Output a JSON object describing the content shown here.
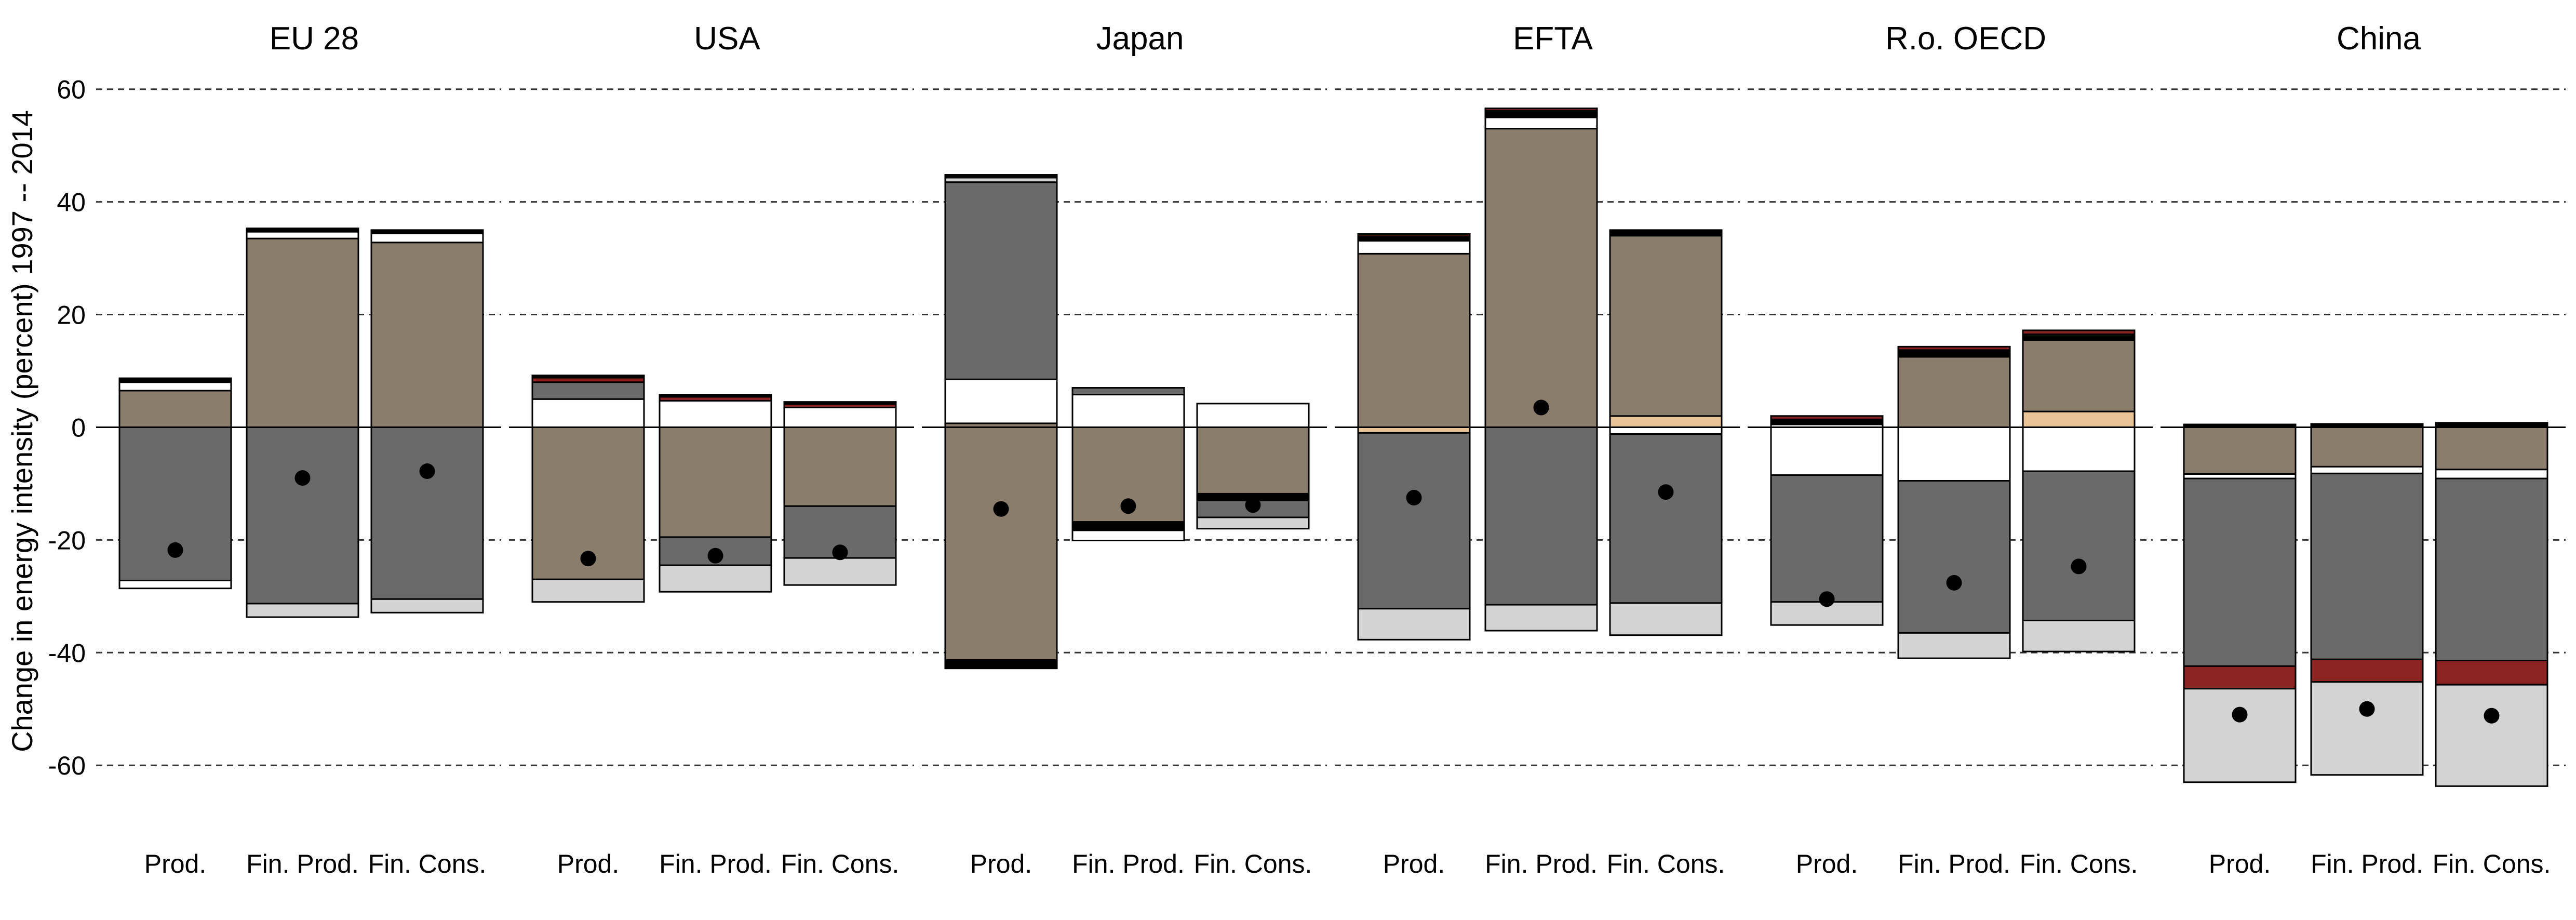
{
  "chart_data": {
    "type": "bar",
    "ylabel": "Change in energy intensity (percent) 1997 -- 2014",
    "ylim": [
      -68,
      62
    ],
    "yticks": [
      -60,
      -40,
      -20,
      0,
      20,
      40,
      60
    ],
    "grid": true,
    "categories": [
      "Prod.",
      "Fin. Prod.",
      "Fin. Cons."
    ],
    "colors": {
      "tan": "#8b7d6b",
      "darkgray": "#6a6a6a",
      "white": "#ffffff",
      "lightgray": "#d3d3d3",
      "black": "#000000",
      "red": "#8b2323",
      "peach": "#e8c498"
    },
    "panels": [
      {
        "title": "EU 28",
        "bars": [
          {
            "category": "Prod.",
            "total": -21.8,
            "pos": [
              [
                "tan",
                6.5
              ],
              [
                "white",
                1.5
              ],
              [
                "black",
                0.7
              ]
            ],
            "neg": [
              [
                "darkgray",
                27.2
              ],
              [
                "white",
                1.4
              ]
            ]
          },
          {
            "category": "Fin. Prod.",
            "total": -9.0,
            "pos": [
              [
                "tan",
                33.5
              ],
              [
                "white",
                1.2
              ],
              [
                "black",
                0.6
              ]
            ],
            "neg": [
              [
                "darkgray",
                31.3
              ],
              [
                "lightgray",
                2.4
              ]
            ]
          },
          {
            "category": "Fin. Cons.",
            "total": -7.8,
            "pos": [
              [
                "tan",
                32.8
              ],
              [
                "white",
                1.6
              ],
              [
                "black",
                0.6
              ]
            ],
            "neg": [
              [
                "darkgray",
                30.5
              ],
              [
                "lightgray",
                2.4
              ]
            ]
          }
        ]
      },
      {
        "title": "USA",
        "bars": [
          {
            "category": "Prod.",
            "total": -23.3,
            "pos": [
              [
                "white",
                5.0
              ],
              [
                "darkgray",
                3.0
              ],
              [
                "red",
                0.8
              ],
              [
                "black",
                0.4
              ]
            ],
            "neg": [
              [
                "tan",
                27.0
              ],
              [
                "lightgray",
                4.0
              ]
            ]
          },
          {
            "category": "Fin. Prod.",
            "total": -22.8,
            "pos": [
              [
                "white",
                4.7
              ],
              [
                "red",
                0.7
              ],
              [
                "black",
                0.4
              ]
            ],
            "neg": [
              [
                "tan",
                19.5
              ],
              [
                "darkgray",
                5.0
              ],
              [
                "lightgray",
                4.7
              ]
            ]
          },
          {
            "category": "Fin. Cons.",
            "total": -22.2,
            "pos": [
              [
                "white",
                3.5
              ],
              [
                "red",
                0.6
              ],
              [
                "black",
                0.4
              ]
            ],
            "neg": [
              [
                "tan",
                14.0
              ],
              [
                "darkgray",
                9.2
              ],
              [
                "lightgray",
                4.8
              ]
            ]
          }
        ]
      },
      {
        "title": "Japan",
        "bars": [
          {
            "category": "Prod.",
            "total": -14.5,
            "pos": [
              [
                "tan",
                0.7
              ],
              [
                "white",
                7.8
              ],
              [
                "darkgray",
                35.0
              ],
              [
                "lightgray",
                0.8
              ],
              [
                "black",
                0.5
              ]
            ],
            "neg": [
              [
                "tan",
                41.3
              ],
              [
                "black",
                1.5
              ]
            ]
          },
          {
            "category": "Fin. Prod.",
            "total": -14.0,
            "pos": [
              [
                "white",
                5.8
              ],
              [
                "darkgray",
                1.2
              ]
            ],
            "neg": [
              [
                "tan",
                16.8
              ],
              [
                "black",
                1.5
              ],
              [
                "white",
                1.8
              ]
            ]
          },
          {
            "category": "Fin. Cons.",
            "total": -13.8,
            "pos": [
              [
                "white",
                4.2
              ]
            ],
            "neg": [
              [
                "tan",
                11.8
              ],
              [
                "black",
                1.2
              ],
              [
                "darkgray",
                3.0
              ],
              [
                "lightgray",
                2.0
              ]
            ]
          }
        ]
      },
      {
        "title": "EFTA",
        "bars": [
          {
            "category": "Prod.",
            "total": -12.5,
            "pos": [
              [
                "tan",
                30.8
              ],
              [
                "white",
                2.3
              ],
              [
                "black",
                0.8
              ],
              [
                "red",
                0.4
              ]
            ],
            "neg": [
              [
                "peach",
                1.0
              ],
              [
                "darkgray",
                31.2
              ],
              [
                "lightgray",
                5.5
              ]
            ]
          },
          {
            "category": "Fin. Prod.",
            "total": 3.5,
            "pos": [
              [
                "tan",
                53.0
              ],
              [
                "white",
                2.0
              ],
              [
                "black",
                1.2
              ],
              [
                "red",
                0.4
              ]
            ],
            "neg": [
              [
                "darkgray",
                31.5
              ],
              [
                "lightgray",
                4.6
              ]
            ]
          },
          {
            "category": "Fin. Cons.",
            "total": -11.5,
            "pos": [
              [
                "peach",
                2.0
              ],
              [
                "tan",
                32.0
              ],
              [
                "black",
                1.0
              ]
            ],
            "neg": [
              [
                "white",
                1.2
              ],
              [
                "darkgray",
                30.0
              ],
              [
                "lightgray",
                5.7
              ]
            ]
          }
        ]
      },
      {
        "title": "R.o. OECD",
        "bars": [
          {
            "category": "Prod.",
            "total": -30.5,
            "pos": [
              [
                "white",
                0.5
              ],
              [
                "black",
                0.9
              ],
              [
                "red",
                0.6
              ]
            ],
            "neg": [
              [
                "white",
                8.5
              ],
              [
                "darkgray",
                22.5
              ],
              [
                "lightgray",
                4.1
              ]
            ]
          },
          {
            "category": "Fin. Prod.",
            "total": -27.6,
            "pos": [
              [
                "tan",
                12.5
              ],
              [
                "black",
                1.2
              ],
              [
                "red",
                0.6
              ]
            ],
            "neg": [
              [
                "white",
                9.5
              ],
              [
                "darkgray",
                27.0
              ],
              [
                "lightgray",
                4.5
              ]
            ]
          },
          {
            "category": "Fin. Cons.",
            "total": -24.7,
            "pos": [
              [
                "peach",
                2.8
              ],
              [
                "tan",
                12.7
              ],
              [
                "black",
                1.0
              ],
              [
                "red",
                0.7
              ]
            ],
            "neg": [
              [
                "white",
                7.8
              ],
              [
                "darkgray",
                26.5
              ],
              [
                "lightgray",
                5.5
              ]
            ]
          }
        ]
      },
      {
        "title": "China",
        "bars": [
          {
            "category": "Prod.",
            "total": -51.0,
            "pos": [
              [
                "black",
                0.5
              ]
            ],
            "neg": [
              [
                "tan",
                8.3
              ],
              [
                "white",
                0.8
              ],
              [
                "darkgray",
                33.3
              ],
              [
                "red",
                4.0
              ],
              [
                "lightgray",
                16.6
              ]
            ]
          },
          {
            "category": "Fin. Prod.",
            "total": -50.0,
            "pos": [
              [
                "black",
                0.6
              ]
            ],
            "neg": [
              [
                "tan",
                7.0
              ],
              [
                "white",
                1.2
              ],
              [
                "darkgray",
                33.0
              ],
              [
                "red",
                4.0
              ],
              [
                "lightgray",
                16.5
              ]
            ]
          },
          {
            "category": "Fin. Cons.",
            "total": -51.2,
            "pos": [
              [
                "black",
                0.8
              ]
            ],
            "neg": [
              [
                "tan",
                7.5
              ],
              [
                "white",
                1.6
              ],
              [
                "darkgray",
                32.3
              ],
              [
                "red",
                4.3
              ],
              [
                "lightgray",
                18.0
              ]
            ]
          }
        ]
      }
    ]
  }
}
